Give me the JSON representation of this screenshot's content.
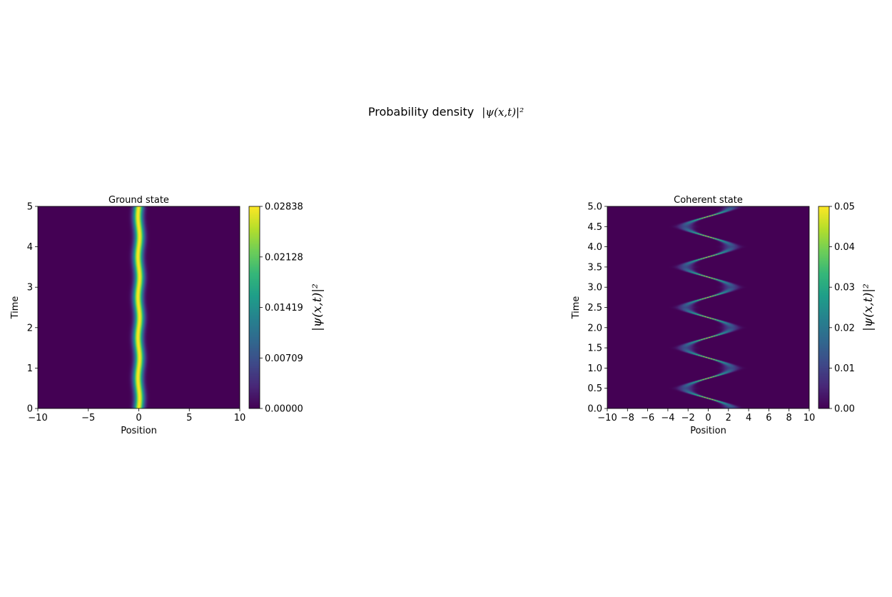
{
  "figure": {
    "title_text": "Probability density",
    "title_math": "|ψ(x,t)|²"
  },
  "colormap": {
    "name": "viridis",
    "stops": [
      "#440154",
      "#482878",
      "#3e4a89",
      "#31688e",
      "#26828e",
      "#1f9e89",
      "#35b779",
      "#6ece58",
      "#b5de2b",
      "#fde725"
    ]
  },
  "chart_data": [
    {
      "type": "heatmap",
      "title": "Ground state",
      "xlabel": "Position",
      "ylabel": "Time",
      "xlim": [
        -10,
        10
      ],
      "ylim": [
        0,
        5
      ],
      "xticks": [
        -10,
        -5,
        0,
        5,
        10
      ],
      "yticks": [
        0,
        1,
        2,
        3,
        4,
        5
      ],
      "colorbar": {
        "label": "|ψ(x,t)|²",
        "range": [
          0.0,
          0.02838
        ],
        "ticks": [
          "0.00000",
          "0.00709",
          "0.01419",
          "0.02128",
          "0.02838"
        ]
      },
      "density": {
        "model": "gaussian_wavepacket",
        "center_amplitude": 0.0,
        "center_wobble": 0.08,
        "width_sigma": 0.32,
        "peak": 0.02838,
        "period": 1.0
      }
    },
    {
      "type": "heatmap",
      "title": "Coherent state",
      "xlabel": "Position",
      "ylabel": "Time",
      "xlim": [
        -10,
        10
      ],
      "ylim": [
        0,
        5
      ],
      "xticks": [
        -10,
        -8,
        -6,
        -4,
        -2,
        0,
        2,
        4,
        6,
        8,
        10
      ],
      "yticks": [
        "0.0",
        "0.5",
        "1.0",
        "1.5",
        "2.0",
        "2.5",
        "3.0",
        "3.5",
        "4.0",
        "4.5",
        "5.0"
      ],
      "colorbar": {
        "label": "|ψ(x,t)|²",
        "range": [
          0.0,
          0.05
        ],
        "ticks": [
          "0.00",
          "0.01",
          "0.02",
          "0.03",
          "0.04",
          "0.05"
        ]
      },
      "density": {
        "model": "oscillating_wavepacket",
        "center_amplitude": 2.3,
        "period": 1.0,
        "phase_start": "right",
        "width_at_turning_point": 0.55,
        "width_at_crossing": 0.12,
        "peak": 0.05
      }
    }
  ]
}
